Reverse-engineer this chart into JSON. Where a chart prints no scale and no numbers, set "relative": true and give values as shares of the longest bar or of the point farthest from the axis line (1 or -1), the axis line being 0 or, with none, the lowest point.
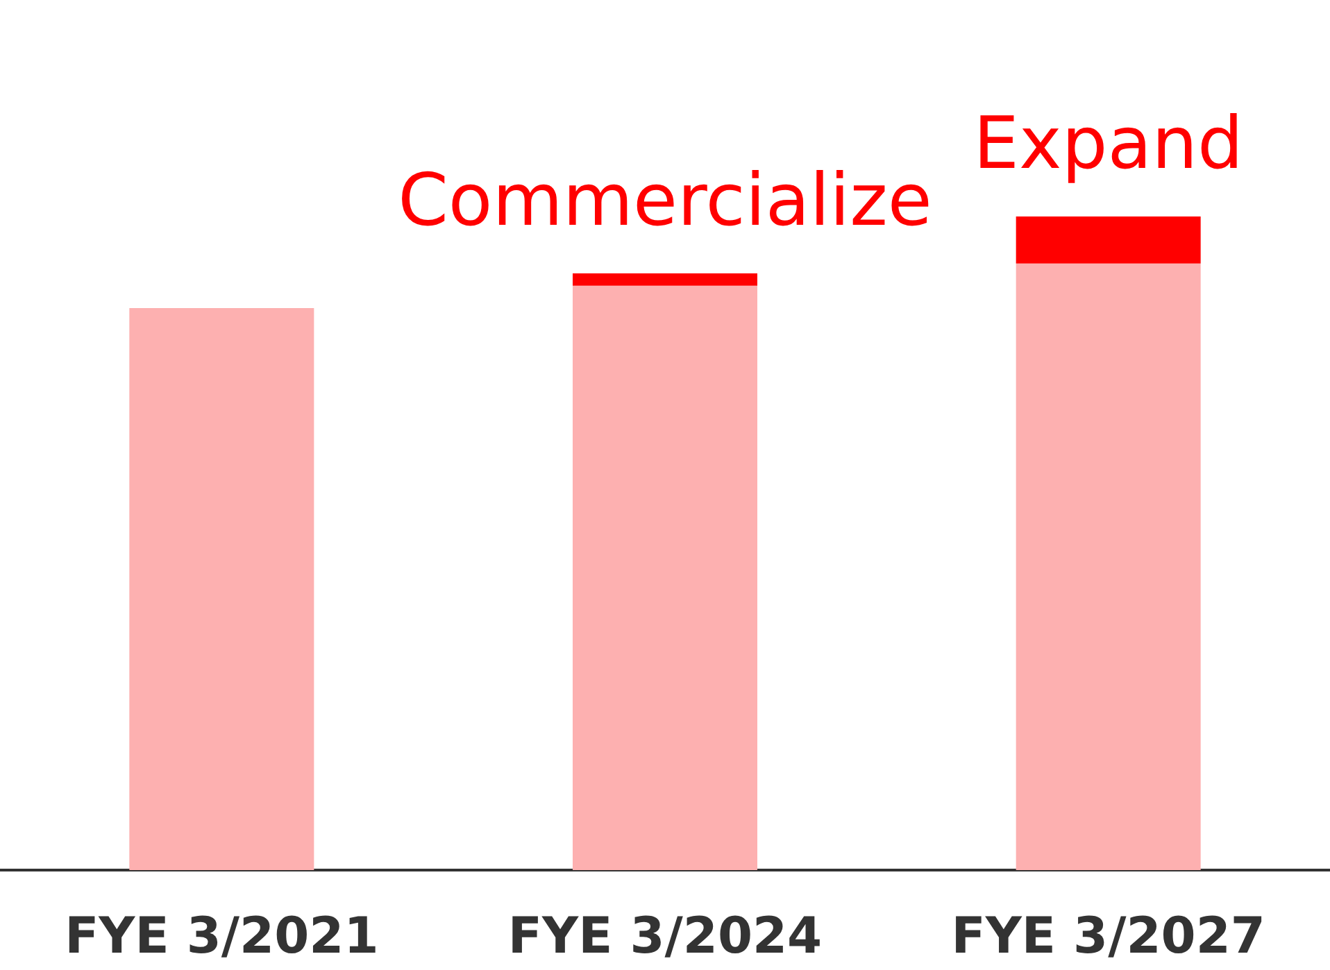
{
  "chart_data": {
    "type": "bar",
    "relative": true,
    "stacked": true,
    "categories": [
      "FYE 3/2021",
      "FYE 3/2024",
      "FYE 3/2027"
    ],
    "series": [
      {
        "color": "#fdb0b0",
        "values": [
          0.86,
          0.894,
          0.928
        ]
      },
      {
        "color": "#ff0000",
        "values": [
          null,
          0.019,
          0.072
        ]
      }
    ],
    "annotations": [
      "Commercialize",
      "Expand"
    ]
  }
}
